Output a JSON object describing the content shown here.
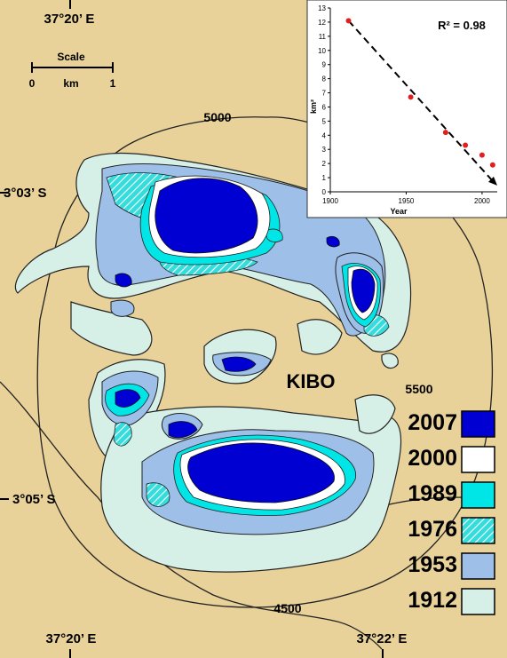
{
  "map": {
    "coords": {
      "top_lon": "37°20’ E",
      "bottom_lon_left": "37°20’ E",
      "bottom_lon_right": "37°22’ E",
      "lat_north": "3°03’ S",
      "lat_south": "3°05’ S"
    },
    "scale": {
      "title": "Scale",
      "left": "0",
      "unit": "km",
      "right": "1"
    },
    "place_label": "KIBO",
    "contours": {
      "c5000": "5000",
      "c5500": "5500",
      "c4500": "4500"
    },
    "colors": {
      "background": "#e8d29a",
      "y1912": "#d6efe7",
      "y1953": "#9dbfe8",
      "y1976": "#34dcdc",
      "y1989": "#00e6e6",
      "y2000": "#ffffff",
      "y2007": "#0000d2"
    }
  },
  "legend": {
    "items": [
      {
        "year": "2007",
        "color": "#0000d2",
        "pattern": "solid"
      },
      {
        "year": "2000",
        "color": "#ffffff",
        "pattern": "solid"
      },
      {
        "year": "1989",
        "color": "#00e6e6",
        "pattern": "solid"
      },
      {
        "year": "1976",
        "color": "#34dcdc",
        "pattern": "hatched"
      },
      {
        "year": "1953",
        "color": "#9dbfe8",
        "pattern": "solid"
      },
      {
        "year": "1912",
        "color": "#d6efe7",
        "pattern": "solid"
      }
    ]
  },
  "chart_data": {
    "type": "scatter",
    "title": "",
    "annotation": "R² = 0.98",
    "xlabel": "Year",
    "ylabel": "km²",
    "xlim": [
      1900,
      2010
    ],
    "ylim": [
      0,
      13
    ],
    "xticks": [
      1900,
      1950,
      2000
    ],
    "yticks": [
      0,
      1,
      2,
      3,
      4,
      5,
      6,
      7,
      8,
      9,
      10,
      11,
      12,
      13
    ],
    "series": [
      {
        "x": [
          1912,
          1953,
          1976,
          1989,
          2000,
          2007
        ],
        "y": [
          12.1,
          6.7,
          4.2,
          3.3,
          2.6,
          1.9
        ],
        "color": "#e02020"
      }
    ],
    "trendline": {
      "style": "dashed",
      "arrow": true
    },
    "grid": false
  }
}
